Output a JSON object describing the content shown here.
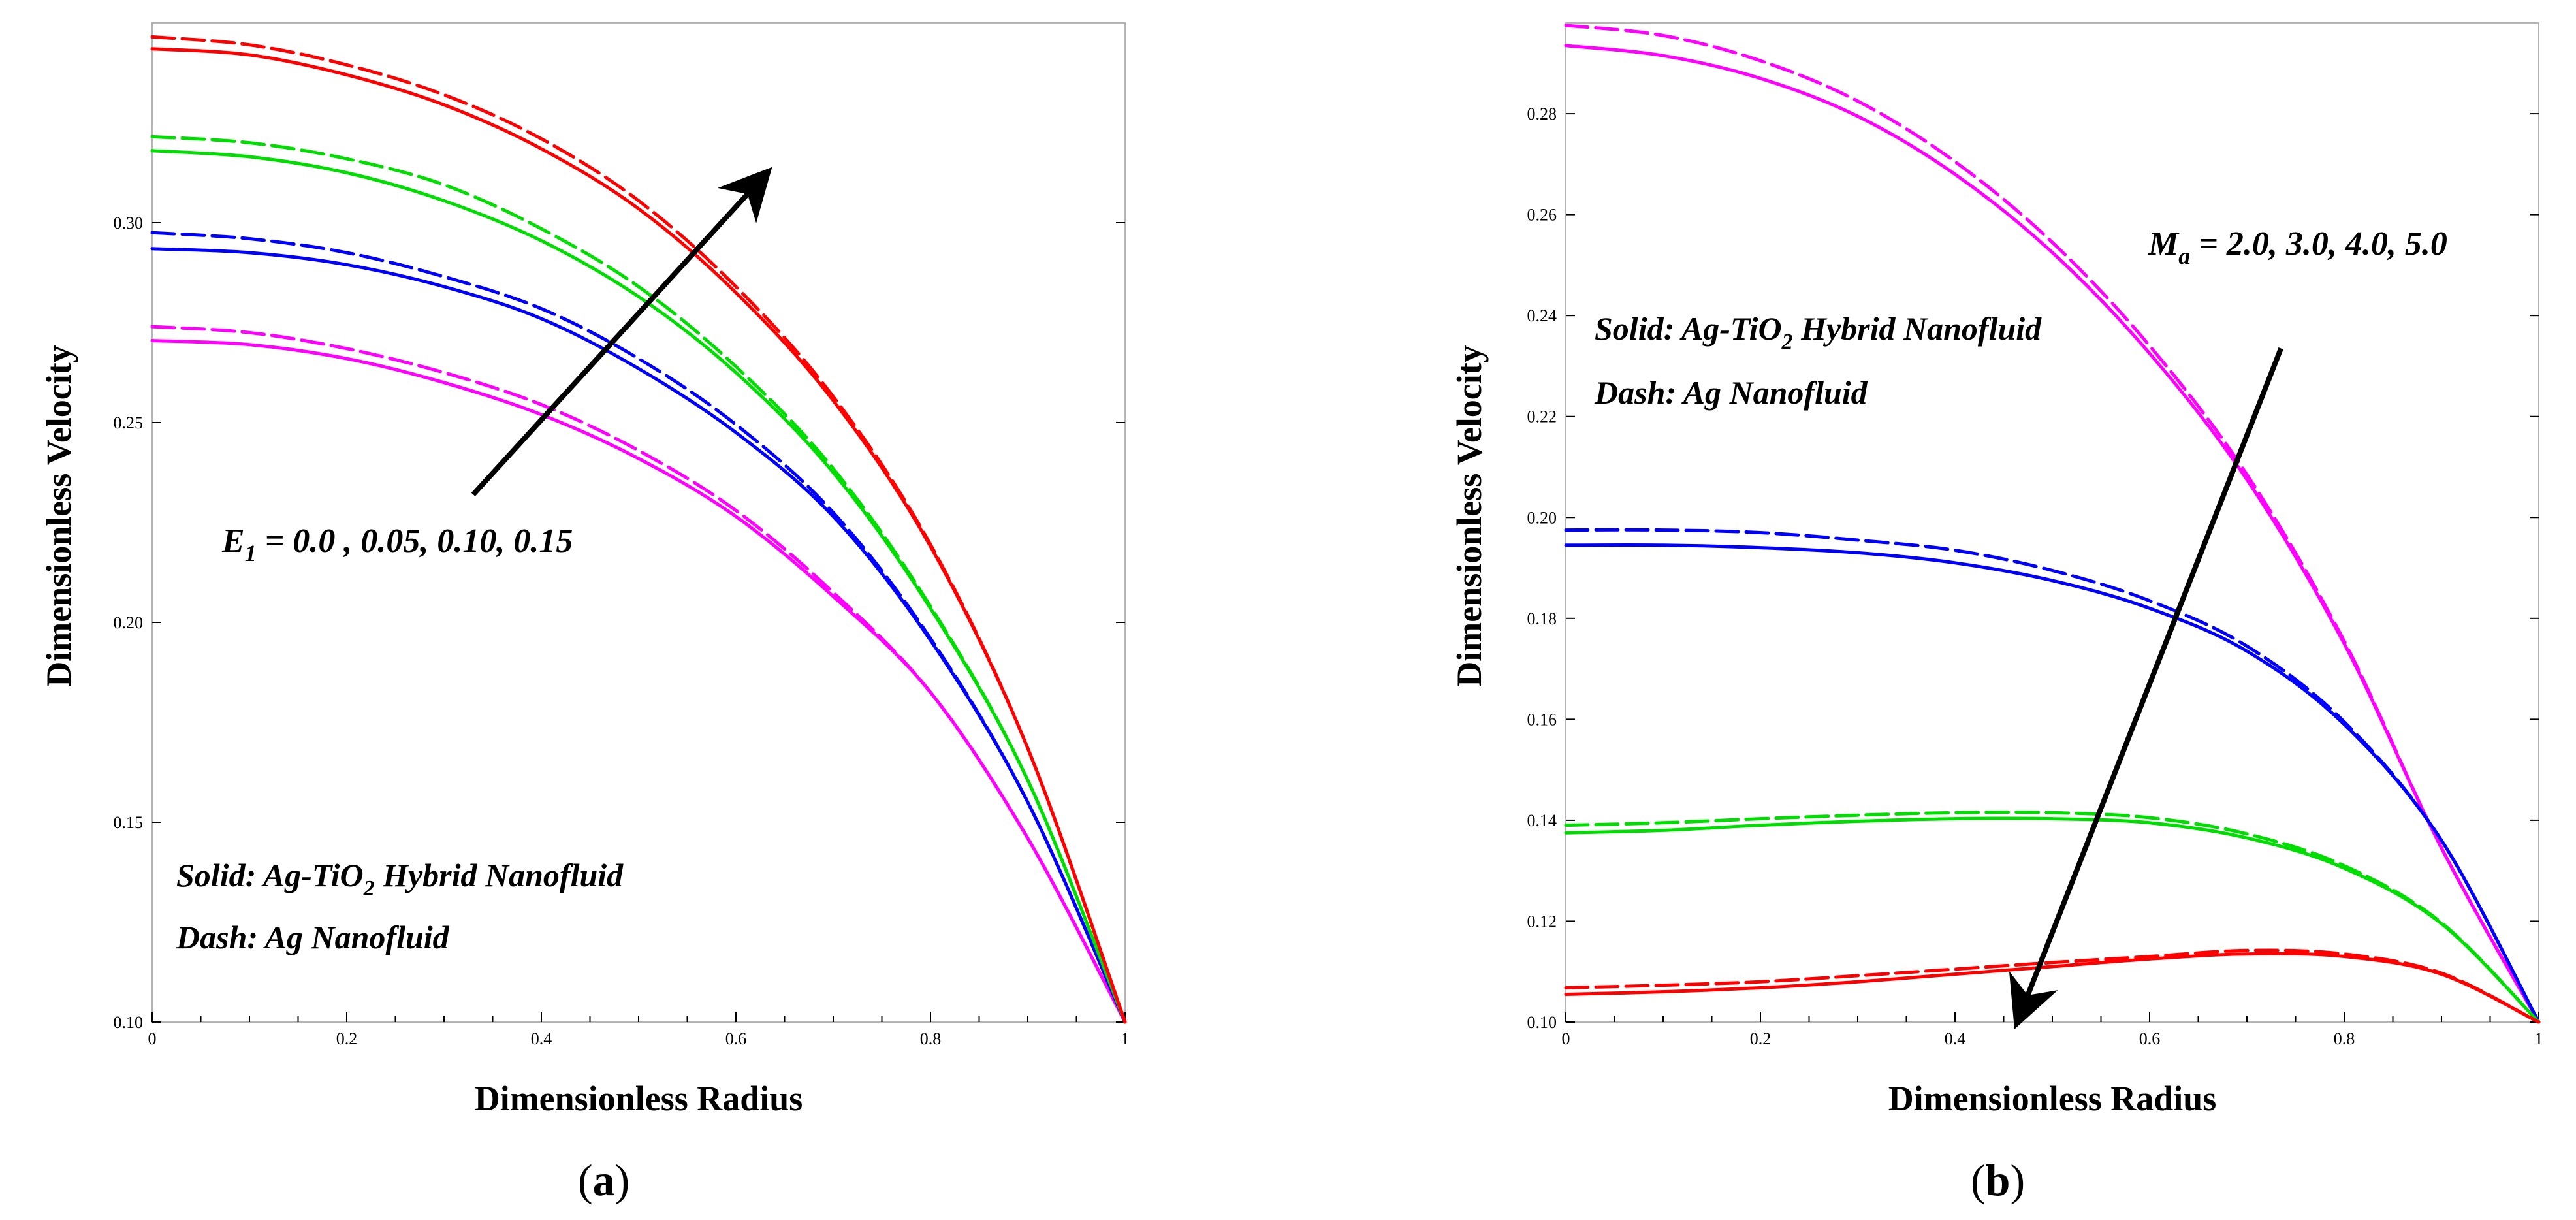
{
  "chart_data": [
    {
      "type": "line",
      "panel_label": "a",
      "xlabel": "Dimensionless Radius",
      "ylabel": "Dimensionless Velocity",
      "xlim": [
        0,
        1
      ],
      "ylim": [
        0.1,
        0.35
      ],
      "xticks": [
        0,
        0.2,
        0.4,
        0.6,
        0.8,
        1
      ],
      "xtick_labels": [
        "0",
        "0.2",
        "0.4",
        "0.6",
        "0.8",
        "1"
      ],
      "yticks": [
        0.1,
        0.15,
        0.2,
        0.25,
        0.3
      ],
      "ytick_labels": [
        "0.10",
        "0.15",
        "0.20",
        "0.25",
        "0.30"
      ],
      "legend": {
        "solid_prefix": "Solid: Ag-TiO",
        "solid_sub": "2",
        "solid_suffix": " Hybrid Nanofluid",
        "dash": "Dash: Ag Nanofluid"
      },
      "parameter": {
        "symbol": "E",
        "sub": "1",
        "values": " = 0.0 , 0.05, 0.10, 0.15"
      },
      "arrow": {
        "from": [
          0.33,
          0.232
        ],
        "to": [
          0.63,
          0.312
        ]
      },
      "x": [
        0,
        0.1,
        0.2,
        0.3,
        0.4,
        0.5,
        0.6,
        0.7,
        0.8,
        0.9,
        1.0
      ],
      "series": [
        {
          "name": "E1 = 0.0 (Ag-TiO2)",
          "style": "solid",
          "color": "#ff00ff",
          "values": [
            0.2705,
            0.2695,
            0.266,
            0.26,
            0.252,
            0.241,
            0.2265,
            0.2065,
            0.1825,
            0.146,
            0.1
          ]
        },
        {
          "name": "E1 = 0.0 (Ag)",
          "style": "dashed",
          "color": "#ff00ff",
          "values": [
            0.274,
            0.2725,
            0.2685,
            0.2625,
            0.2545,
            0.243,
            0.228,
            0.2075,
            0.1825,
            0.146,
            0.1
          ]
        },
        {
          "name": "E1 = 0.05 (Ag-TiO2)",
          "style": "solid",
          "color": "#0000ff",
          "values": [
            0.2935,
            0.2925,
            0.2895,
            0.284,
            0.276,
            0.2635,
            0.2475,
            0.2265,
            0.1955,
            0.155,
            0.1
          ]
        },
        {
          "name": "E1 = 0.05 (Ag)",
          "style": "dashed",
          "color": "#0000ff",
          "values": [
            0.2975,
            0.296,
            0.2925,
            0.2865,
            0.2785,
            0.266,
            0.2495,
            0.2275,
            0.196,
            0.155,
            0.1
          ]
        },
        {
          "name": "E1 = 0.10 (Ag-TiO2)",
          "style": "solid",
          "color": "#00dd00",
          "values": [
            0.318,
            0.3165,
            0.3125,
            0.3055,
            0.2955,
            0.2815,
            0.2625,
            0.2375,
            0.2035,
            0.1605,
            0.1
          ]
        },
        {
          "name": "E1 = 0.10 (Ag)",
          "style": "dashed",
          "color": "#00dd00",
          "values": [
            0.3215,
            0.32,
            0.316,
            0.3095,
            0.2985,
            0.284,
            0.264,
            0.2385,
            0.204,
            0.1605,
            0.1
          ]
        },
        {
          "name": "E1 = 0.15 (Ag-TiO2)",
          "style": "solid",
          "color": "#ff0000",
          "values": [
            0.3435,
            0.342,
            0.337,
            0.3295,
            0.3185,
            0.3035,
            0.2825,
            0.2555,
            0.219,
            0.1685,
            0.1
          ]
        },
        {
          "name": "E1 = 0.15 (Ag)",
          "style": "dashed",
          "color": "#ff0000",
          "values": [
            0.3465,
            0.3445,
            0.3395,
            0.332,
            0.321,
            0.3055,
            0.284,
            0.2565,
            0.2195,
            0.1685,
            0.1
          ]
        }
      ]
    },
    {
      "type": "line",
      "panel_label": "b",
      "xlabel": "Dimensionless Radius",
      "ylabel": "Dimensionless Velocity",
      "xlim": [
        0,
        1
      ],
      "ylim": [
        0.1,
        0.298
      ],
      "xticks": [
        0,
        0.2,
        0.4,
        0.6,
        0.8,
        1
      ],
      "xtick_labels": [
        "0",
        "0.2",
        "0.4",
        "0.6",
        "0.8",
        "1"
      ],
      "yticks": [
        0.1,
        0.12,
        0.14,
        0.16,
        0.18,
        0.2,
        0.22,
        0.24,
        0.26,
        0.28
      ],
      "ytick_labels": [
        "0.10",
        "0.12",
        "0.14",
        "0.16",
        "0.18",
        "0.20",
        "0.22",
        "0.24",
        "0.26",
        "0.28"
      ],
      "legend": {
        "solid_prefix": "Solid: Ag-TiO",
        "solid_sub": "2",
        "solid_suffix": " Hybrid Nanofluid",
        "dash": "Dash: Ag Nanofluid"
      },
      "parameter": {
        "symbol": "M",
        "sub": "a",
        "values": " = 2.0, 3.0, 4.0, 5.0"
      },
      "arrow": {
        "from": [
          0.735,
          0.2335
        ],
        "to": [
          0.465,
          0.1005
        ]
      },
      "x": [
        0,
        0.1,
        0.2,
        0.3,
        0.4,
        0.5,
        0.6,
        0.7,
        0.8,
        0.9,
        1.0
      ],
      "series": [
        {
          "name": "Ma = 2.0 (Ag-TiO2)",
          "style": "solid",
          "color": "#ff00ff",
          "values": [
            0.2935,
            0.2915,
            0.287,
            0.2795,
            0.268,
            0.2525,
            0.2325,
            0.2075,
            0.175,
            0.1345,
            0.1
          ]
        },
        {
          "name": "Ma = 2.0 (Ag)",
          "style": "dashed",
          "color": "#ff00ff",
          "values": [
            0.2975,
            0.2955,
            0.2905,
            0.2825,
            0.2705,
            0.2545,
            0.234,
            0.2085,
            0.1755,
            0.1345,
            0.1
          ]
        },
        {
          "name": "Ma = 3.0 (Ag-TiO2)",
          "style": "solid",
          "color": "#0000ff",
          "values": [
            0.1945,
            0.1945,
            0.194,
            0.193,
            0.191,
            0.1875,
            0.182,
            0.1735,
            0.159,
            0.136,
            0.1
          ]
        },
        {
          "name": "Ma = 3.0 (Ag)",
          "style": "dashed",
          "color": "#0000ff",
          "values": [
            0.1975,
            0.1975,
            0.197,
            0.1955,
            0.1935,
            0.1895,
            0.1835,
            0.1745,
            0.1595,
            0.136,
            0.1
          ]
        },
        {
          "name": "Ma = 4.0 (Ag-TiO2)",
          "style": "solid",
          "color": "#00dd00",
          "values": [
            0.1375,
            0.138,
            0.139,
            0.1398,
            0.1403,
            0.1403,
            0.1395,
            0.1365,
            0.1305,
            0.1195,
            0.1
          ]
        },
        {
          "name": "Ma = 4.0 (Ag)",
          "style": "dashed",
          "color": "#00dd00",
          "values": [
            0.139,
            0.1395,
            0.1403,
            0.141,
            0.1415,
            0.1415,
            0.1405,
            0.1373,
            0.131,
            0.1197,
            0.1
          ]
        },
        {
          "name": "Ma = 5.0 (Ag-TiO2)",
          "style": "solid",
          "color": "#ff0000",
          "values": [
            0.1055,
            0.106,
            0.1068,
            0.108,
            0.1095,
            0.111,
            0.1125,
            0.1135,
            0.113,
            0.1095,
            0.1
          ]
        },
        {
          "name": "Ma = 5.0 (Ag)",
          "style": "dashed",
          "color": "#ff0000",
          "values": [
            0.1068,
            0.1073,
            0.108,
            0.1092,
            0.1105,
            0.1118,
            0.113,
            0.1142,
            0.1135,
            0.1097,
            0.1
          ]
        }
      ]
    }
  ]
}
